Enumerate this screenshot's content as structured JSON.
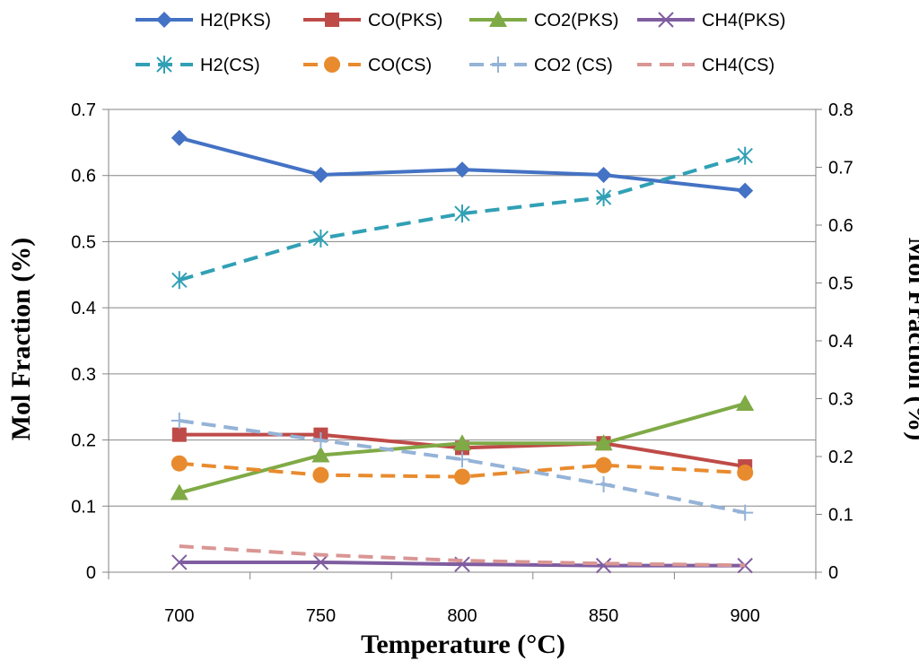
{
  "chart_data": {
    "type": "line",
    "x": [
      700,
      750,
      800,
      850,
      900
    ],
    "xlabel": "Temperature (°C)",
    "ylabel_left": "Mol Fraction (%)",
    "ylabel_right": "Mol Fraction (%)",
    "ylim_left": [
      0,
      0.7
    ],
    "ylim_right": [
      0,
      0.8
    ],
    "yticks_left": [
      "0",
      "0.1",
      "0.2",
      "0.3",
      "0.4",
      "0.5",
      "0.6",
      "0.7"
    ],
    "yticks_right": [
      "0",
      "0.1",
      "0.2",
      "0.3",
      "0.4",
      "0.5",
      "0.6",
      "0.7",
      "0.8"
    ],
    "xticks": [
      "700",
      "750",
      "800",
      "850",
      "900"
    ],
    "grid": "horizontal",
    "legend_position": "top",
    "series": [
      {
        "name": "H2(PKS)",
        "axis": "left",
        "values": [
          0.657,
          0.601,
          0.609,
          0.601,
          0.577
        ],
        "color": "#4472C4",
        "marker": "diamond",
        "dash": false
      },
      {
        "name": "CO(PKS)",
        "axis": "left",
        "values": [
          0.208,
          0.208,
          0.188,
          0.195,
          0.16
        ],
        "color": "#BE4B48",
        "marker": "square",
        "dash": false
      },
      {
        "name": "CO2(PKS)",
        "axis": "left",
        "values": [
          0.12,
          0.177,
          0.195,
          0.195,
          0.255
        ],
        "color": "#7FAA46",
        "marker": "triangle",
        "dash": false
      },
      {
        "name": "CH4(PKS)",
        "axis": "left",
        "values": [
          0.015,
          0.015,
          0.012,
          0.01,
          0.01
        ],
        "color": "#7F5DA0",
        "marker": "x",
        "dash": false
      },
      {
        "name": "H2(CS)",
        "axis": "right",
        "values": [
          0.505,
          0.577,
          0.62,
          0.648,
          0.72
        ],
        "color": "#31A0B5",
        "marker": "star",
        "dash": true
      },
      {
        "name": "CO(CS)",
        "axis": "right",
        "values": [
          0.188,
          0.168,
          0.165,
          0.185,
          0.172
        ],
        "color": "#E88B2E",
        "marker": "circle",
        "dash": true
      },
      {
        "name": "CO2 (CS)",
        "axis": "right",
        "values": [
          0.262,
          0.228,
          0.195,
          0.152,
          0.103
        ],
        "color": "#95B3D7",
        "marker": "plus",
        "dash": true
      },
      {
        "name": "CH4(CS)",
        "axis": "right",
        "values": [
          0.045,
          0.03,
          0.02,
          0.015,
          0.012
        ],
        "color": "#D99694",
        "marker": "none",
        "dash": true
      }
    ]
  }
}
